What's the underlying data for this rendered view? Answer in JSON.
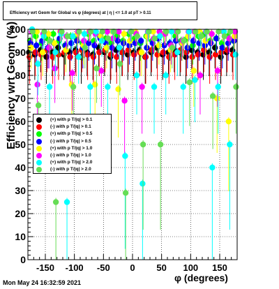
{
  "page": {
    "title": "Efficiency wrt Geom for Global vs φ (degrees) at | η | <= 1.0 at pT > 0.11",
    "timestamp": "Mon May 24 16:32:59 2021"
  },
  "chart_data": {
    "type": "scatter",
    "title": "Efficiency wrt Geom for Global vs φ (degrees) at | η | <= 1.0 at pT > 0.11",
    "xlabel": "φ (degrees)",
    "ylabel": "Efficiency wrt Geom (%)",
    "xlim": [
      -180,
      180
    ],
    "ylim": [
      0,
      100
    ],
    "x_ticks": [
      -150,
      -100,
      -50,
      0,
      50,
      100,
      150
    ],
    "y_ticks": [
      0,
      10,
      20,
      30,
      40,
      50,
      60,
      70,
      80,
      90,
      100
    ],
    "grid": true,
    "legend_position": "middle-left",
    "series": [
      {
        "name": "(+) with p T/|q| > 0.1",
        "color": "#000000",
        "x": [
          -175,
          -165,
          -155,
          -145,
          -135,
          -125,
          -115,
          -105,
          -95,
          -85,
          -75,
          -65,
          -55,
          -45,
          -35,
          -25,
          -15,
          -5,
          5,
          15,
          25,
          35,
          45,
          55,
          65,
          75,
          85,
          95,
          105,
          115,
          125,
          135,
          145,
          155,
          165,
          175
        ],
        "y": [
          90,
          89,
          91,
          88,
          90,
          92,
          89,
          90,
          91,
          88,
          90,
          89,
          92,
          90,
          88,
          91,
          90,
          89,
          90,
          91,
          88,
          90,
          92,
          89,
          90,
          91,
          90,
          88,
          91,
          90,
          89,
          90,
          92,
          88,
          90,
          91
        ]
      },
      {
        "name": "(-) with p T/|q| > 0.1",
        "color": "#ff0000",
        "x": [
          -175,
          -165,
          -155,
          -145,
          -135,
          -125,
          -115,
          -105,
          -95,
          -85,
          -75,
          -65,
          -55,
          -45,
          -35,
          -25,
          -15,
          -5,
          5,
          15,
          25,
          35,
          45,
          55,
          65,
          75,
          85,
          95,
          105,
          115,
          125,
          135,
          145,
          155,
          165,
          175
        ],
        "y": [
          88,
          90,
          89,
          91,
          88,
          89,
          90,
          88,
          90,
          91,
          89,
          88,
          90,
          91,
          89,
          88,
          90,
          91,
          89,
          90,
          88,
          91,
          89,
          90,
          88,
          89,
          91,
          90,
          88,
          89,
          91,
          88,
          89,
          90,
          91,
          89
        ]
      },
      {
        "name": "(+) with p T/|q| > 0.5",
        "color": "#00ff00",
        "x": [
          -175,
          -165,
          -155,
          -145,
          -135,
          -125,
          -115,
          -105,
          -95,
          -85,
          -75,
          -65,
          -55,
          -45,
          -35,
          -25,
          -15,
          -5,
          5,
          15,
          25,
          35,
          45,
          55,
          65,
          75,
          85,
          95,
          105,
          115,
          125,
          135,
          145,
          155,
          165,
          175
        ],
        "y": [
          95,
          97,
          94,
          96,
          98,
          95,
          93,
          97,
          96,
          94,
          98,
          95,
          97,
          96,
          94,
          97,
          95,
          98,
          96,
          94,
          97,
          95,
          96,
          98,
          94,
          97,
          95,
          96,
          93,
          97,
          98,
          95,
          96,
          94,
          97,
          95
        ]
      },
      {
        "name": "(-) with p T/|q| > 0.5",
        "color": "#0000ff",
        "x": [
          -175,
          -165,
          -155,
          -145,
          -135,
          -125,
          -115,
          -105,
          -95,
          -85,
          -75,
          -65,
          -55,
          -45,
          -35,
          -25,
          -15,
          -5,
          5,
          15,
          25,
          35,
          45,
          55,
          65,
          75,
          85,
          95,
          105,
          115,
          125,
          135,
          145,
          155,
          165,
          175
        ],
        "y": [
          94,
          93,
          95,
          92,
          94,
          96,
          93,
          94,
          95,
          92,
          94,
          93,
          96,
          94,
          92,
          95,
          94,
          93,
          94,
          95,
          92,
          94,
          96,
          93,
          94,
          95,
          94,
          92,
          95,
          94,
          93,
          94,
          96,
          92,
          94,
          95
        ]
      },
      {
        "name": "(+) with p T/|q| > 1.0",
        "color": "#ffff00",
        "x": [
          -175,
          -165,
          -155,
          -145,
          -135,
          -125,
          -115,
          -105,
          -95,
          -85,
          -75,
          -65,
          -55,
          -45,
          -35,
          -25,
          -15,
          -5,
          5,
          15,
          25,
          35,
          45,
          55,
          65,
          75,
          85,
          95,
          105,
          115,
          125,
          135,
          145,
          155,
          165,
          175
        ],
        "y": [
          92,
          99,
          90,
          98,
          94,
          99,
          91,
          76,
          98,
          93,
          99,
          76,
          97,
          92,
          99,
          74,
          98,
          95,
          99,
          90,
          97,
          99,
          93,
          98,
          91,
          99,
          94,
          97,
          82,
          99,
          95,
          98,
          70,
          99,
          60,
          97
        ]
      },
      {
        "name": "(-) with p T/|q| > 1.0",
        "color": "#ff00ff",
        "x": [
          -175,
          -165,
          -155,
          -145,
          -135,
          -125,
          -115,
          -105,
          -95,
          -85,
          -75,
          -65,
          -55,
          -45,
          -35,
          -25,
          -15,
          -5,
          5,
          15,
          25,
          35,
          45,
          55,
          65,
          75,
          85,
          95,
          105,
          115,
          125,
          135,
          145,
          155,
          165,
          175
        ],
        "y": [
          99,
          76,
          98,
          92,
          83,
          99,
          97,
          81,
          99,
          95,
          99,
          98,
          82,
          99,
          96,
          99,
          69,
          99,
          98,
          75,
          99,
          96,
          99,
          98,
          93,
          99,
          95,
          99,
          99,
          80,
          99,
          98,
          82,
          99,
          96,
          99
        ]
      },
      {
        "name": "(+) with p T/|q| > 2.0",
        "color": "#00ffff",
        "x": [
          -175,
          -165,
          -155,
          -145,
          -135,
          -125,
          -115,
          -105,
          -95,
          -85,
          -75,
          -65,
          -55,
          -45,
          -35,
          -25,
          -15,
          -5,
          5,
          15,
          25,
          35,
          45,
          55,
          65,
          75,
          85,
          95,
          105,
          115,
          125,
          135,
          145,
          155,
          165,
          175
        ],
        "y": [
          100,
          85,
          97,
          75,
          90,
          98,
          25,
          97,
          88,
          98,
          75,
          99,
          95,
          75,
          99,
          92,
          45,
          99,
          80,
          33,
          99,
          75,
          97,
          80,
          99,
          90,
          75,
          99,
          78,
          97,
          99,
          40,
          75,
          99,
          50,
          89
        ]
      },
      {
        "name": "(-) with p T/|q| > 2.0",
        "color": "#66dd55",
        "x": [
          -175,
          -165,
          -155,
          -145,
          -135,
          -125,
          -115,
          -105,
          -95,
          -85,
          -75,
          -65,
          -55,
          -45,
          -35,
          -25,
          -15,
          -5,
          5,
          15,
          25,
          35,
          45,
          55,
          65,
          75,
          85,
          95,
          105,
          115,
          125,
          135,
          145,
          155,
          165,
          175
        ],
        "y": [
          99,
          67,
          99,
          95,
          25,
          99,
          97,
          75,
          99,
          92,
          99,
          83,
          99,
          96,
          99,
          85,
          29,
          99,
          97,
          50,
          99,
          96,
          50,
          99,
          92,
          99,
          95,
          77,
          99,
          97,
          99,
          71,
          99,
          97,
          99,
          75
        ]
      }
    ]
  }
}
